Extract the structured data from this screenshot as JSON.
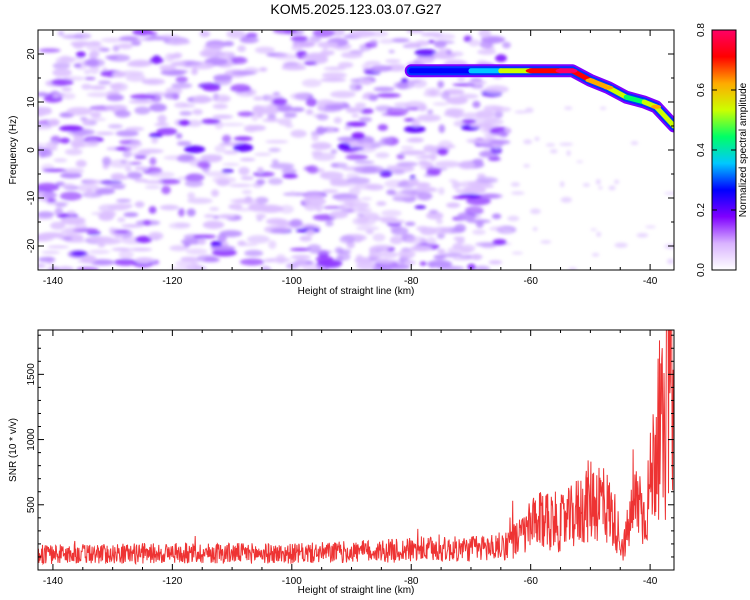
{
  "title": "KOM5.2025.123.03.07.G27",
  "chart_data": [
    {
      "type": "heatmap",
      "xlabel": "Height of straight line (km)",
      "ylabel": "Frequency (Hz)",
      "xlim": [
        -142.5,
        -36
      ],
      "ylim": [
        -25,
        25
      ],
      "xticks": [
        -140,
        -120,
        -100,
        -80,
        -60,
        -40
      ],
      "yticks": [
        -20,
        -10,
        0,
        10,
        20
      ],
      "grid": false,
      "colorbar": {
        "label": "Normalized spectral amplitude",
        "range": [
          0,
          0.8
        ],
        "ticks": [
          "0.0",
          "0.2",
          "0.4",
          "0.6",
          "0.8"
        ],
        "colors": [
          "#ffffff",
          "#d9b3ff",
          "#7f00ff",
          "#0000ff",
          "#00c8ff",
          "#00ff66",
          "#ccff00",
          "#ffaa00",
          "#ff0000",
          "#ff0066"
        ]
      },
      "noise_region": {
        "x_range": [
          -142.5,
          -64
        ],
        "y_range": [
          -25,
          25
        ],
        "typical_amplitude": 0.05
      },
      "signal_ridge": [
        {
          "x": -80,
          "y": 16.5,
          "amplitude": 0.15
        },
        {
          "x": -75,
          "y": 16.5,
          "amplitude": 0.3
        },
        {
          "x": -70,
          "y": 16.5,
          "amplitude": 0.3
        },
        {
          "x": -65,
          "y": 16.5,
          "amplitude": 0.4
        },
        {
          "x": -60,
          "y": 16.5,
          "amplitude": 0.7
        },
        {
          "x": -55,
          "y": 16.5,
          "amplitude": 0.8
        },
        {
          "x": -53,
          "y": 16.5,
          "amplitude": 0.8
        },
        {
          "x": -50,
          "y": 14.5,
          "amplitude": 0.6
        },
        {
          "x": -47,
          "y": 13,
          "amplitude": 0.6
        },
        {
          "x": -44,
          "y": 11,
          "amplitude": 0.4
        },
        {
          "x": -41,
          "y": 10,
          "amplitude": 0.5
        },
        {
          "x": -39,
          "y": 9,
          "amplitude": 0.6
        },
        {
          "x": -36,
          "y": 5,
          "amplitude": 0.5
        }
      ]
    },
    {
      "type": "line",
      "xlabel": "Height of straight line (km)",
      "ylabel": "SNR (10 * v/v)",
      "xlim": [
        -142.5,
        -36
      ],
      "ylim": [
        0,
        1840
      ],
      "xticks": [
        -140,
        -120,
        -100,
        -80,
        -60,
        -40
      ],
      "yticks": [
        500,
        1000,
        1500
      ],
      "color": "#ee3333",
      "envelope": [
        {
          "x": -142.5,
          "y": 130
        },
        {
          "x": -130,
          "y": 135
        },
        {
          "x": -120,
          "y": 140
        },
        {
          "x": -110,
          "y": 140
        },
        {
          "x": -100,
          "y": 135
        },
        {
          "x": -90,
          "y": 150
        },
        {
          "x": -80,
          "y": 165
        },
        {
          "x": -70,
          "y": 175
        },
        {
          "x": -65,
          "y": 195
        },
        {
          "x": -62,
          "y": 260
        },
        {
          "x": -60,
          "y": 360
        },
        {
          "x": -57,
          "y": 430
        },
        {
          "x": -55,
          "y": 380
        },
        {
          "x": -53,
          "y": 440
        },
        {
          "x": -50,
          "y": 580
        },
        {
          "x": -48,
          "y": 580
        },
        {
          "x": -46,
          "y": 420
        },
        {
          "x": -44.5,
          "y": 180
        },
        {
          "x": -43.5,
          "y": 380
        },
        {
          "x": -42,
          "y": 620
        },
        {
          "x": -41,
          "y": 430
        },
        {
          "x": -40,
          "y": 700
        },
        {
          "x": -39,
          "y": 1050
        },
        {
          "x": -38,
          "y": 1150
        },
        {
          "x": -37.5,
          "y": 950
        },
        {
          "x": -37,
          "y": 1500
        },
        {
          "x": -36.5,
          "y": 1750
        },
        {
          "x": -36,
          "y": 1400
        }
      ]
    }
  ]
}
